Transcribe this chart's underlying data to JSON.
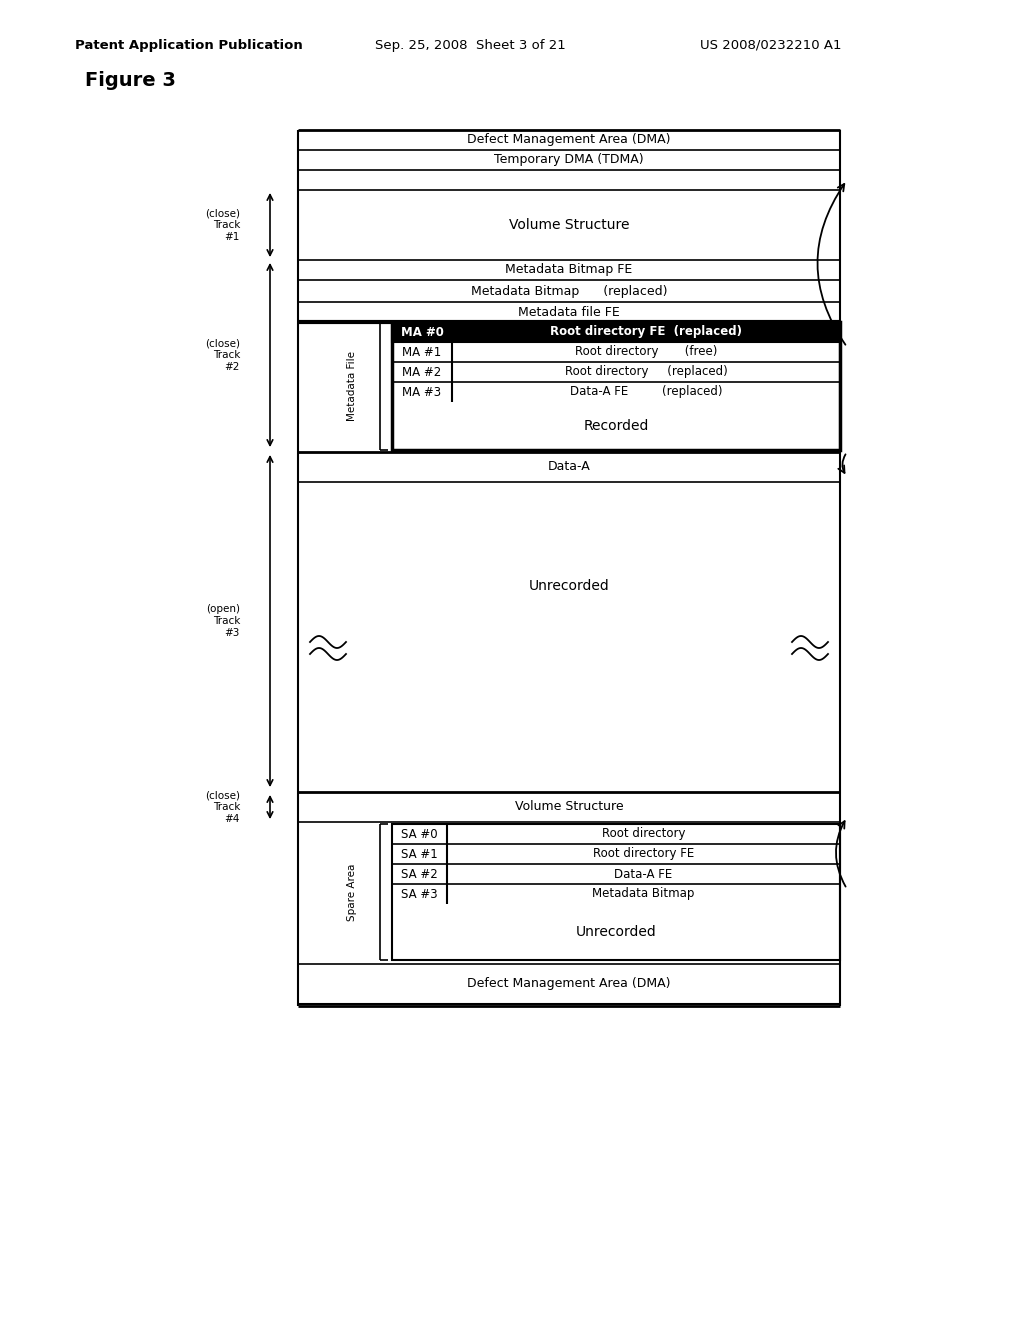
{
  "title_line1": "Patent Application Publication",
  "title_line2": "Sep. 25, 2008  Sheet 3 of 21",
  "title_line3": "US 2008/0232210 A1",
  "figure_label": "Figure 3",
  "bg_color": "#ffffff",
  "ma_rows": [
    {
      "label": "MA #0",
      "content": "Root directory FE  (replaced)",
      "black_bg": true
    },
    {
      "label": "MA #1",
      "content": "Root directory       (free)",
      "black_bg": false
    },
    {
      "label": "MA #2",
      "content": "Root directory     (replaced)",
      "black_bg": false
    },
    {
      "label": "MA #3",
      "content": "Data-A FE         (replaced)",
      "black_bg": false
    }
  ],
  "sa_rows": [
    {
      "label": "SA #0",
      "content": "Root directory"
    },
    {
      "label": "SA #1",
      "content": "Root directory FE"
    },
    {
      "label": "SA #2",
      "content": "Data-A FE"
    },
    {
      "label": "SA #3",
      "content": "Metadata Bitmap"
    }
  ]
}
